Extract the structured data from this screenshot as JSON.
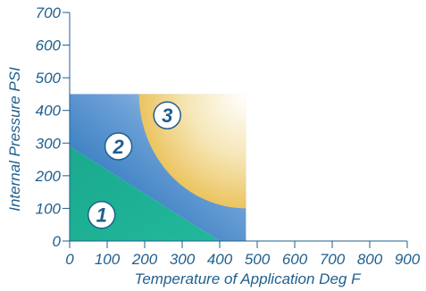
{
  "chart_data": {
    "type": "area",
    "xlabel": "Temperature of Application Deg F",
    "ylabel": "Internal Pressure PSI",
    "xlim": [
      0,
      900
    ],
    "ylim": [
      0,
      700
    ],
    "xticks": [
      0,
      100,
      200,
      300,
      400,
      500,
      600,
      700,
      800,
      900
    ],
    "yticks": [
      0,
      100,
      200,
      300,
      400,
      500,
      600,
      700
    ],
    "grid": false,
    "zones": [
      {
        "label": "1",
        "color": "#1a6fb8",
        "boundary": [
          [
            0,
            0
          ],
          [
            0,
            290
          ],
          [
            400,
            0
          ]
        ],
        "label_at": [
          85,
          80
        ]
      },
      {
        "label": "2",
        "color": "#1fae94",
        "boundary": [
          [
            0,
            290
          ],
          [
            0,
            450
          ],
          [
            470,
            450
          ],
          [
            470,
            0
          ],
          [
            400,
            0
          ]
        ],
        "label_at": [
          130,
          290
        ]
      },
      {
        "label": "3",
        "color": "#e9b53a",
        "boundary": [
          [
            185,
            450
          ],
          [
            470,
            450
          ],
          [
            470,
            100
          ]
        ],
        "corner_radius_data": [
          285,
          350
        ],
        "label_at": [
          260,
          385
        ]
      }
    ],
    "colors": {
      "axis": "#1f5f8e",
      "text": "#1f5f8e",
      "badge_fill": "#ffffff",
      "badge_stroke": "#1f5f8e"
    }
  }
}
